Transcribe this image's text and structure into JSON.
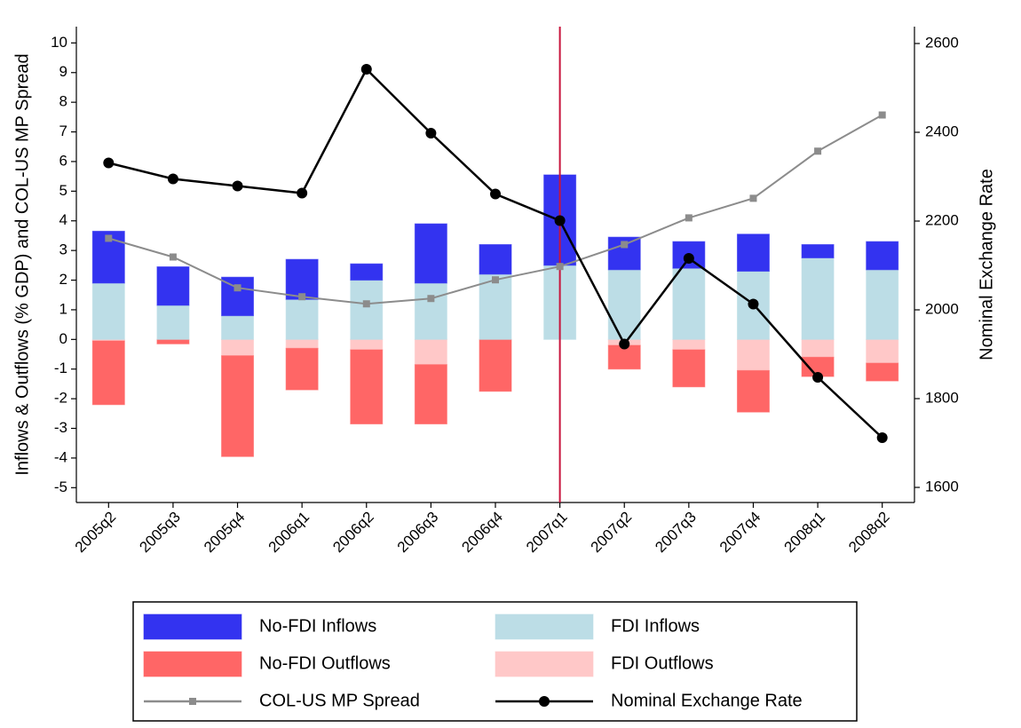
{
  "chart_data": {
    "type": "bar",
    "y_label": "Inflows & Outflows (% GDP) and COL-US MP Spread",
    "y2_label": "Nominal Exchange Rate",
    "categories": [
      "2005q2",
      "2005q3",
      "2005q4",
      "2006q1",
      "2006q2",
      "2006q3",
      "2006q4",
      "2007q1",
      "2007q2",
      "2007q3",
      "2007q4",
      "2008q1",
      "2008q2"
    ],
    "series": [
      {
        "name": "No-FDI Inflows",
        "type": "bar",
        "color": "#3333f0",
        "values": [
          1.75,
          1.3,
          1.3,
          1.35,
          0.55,
          2.0,
          1.0,
          3.05,
          1.1,
          0.9,
          1.25,
          0.45,
          0.95
        ]
      },
      {
        "name": "FDI Inflows",
        "type": "bar",
        "color": "#bcdde6",
        "values": [
          1.9,
          1.15,
          0.8,
          1.35,
          2.0,
          1.9,
          2.2,
          2.5,
          2.35,
          2.4,
          2.3,
          2.75,
          2.35
        ]
      },
      {
        "name": "No-FDI Outflows",
        "type": "bar",
        "color": "#ff6666",
        "values": [
          -2.15,
          -0.15,
          -3.4,
          -1.4,
          -2.5,
          -2.0,
          -1.75,
          0,
          -0.8,
          -1.25,
          -1.4,
          -0.65,
          -0.6
        ]
      },
      {
        "name": "FDI Outflows",
        "type": "bar",
        "color": "#ffc8c8",
        "values": [
          -0.05,
          0,
          -0.55,
          -0.3,
          -0.35,
          -0.85,
          0,
          0,
          -0.2,
          -0.35,
          -1.05,
          -0.6,
          -0.8
        ]
      },
      {
        "name": "COL-US MP Spread",
        "type": "line",
        "marker": "square",
        "color": "#8c8c8c",
        "values": [
          3.41,
          2.78,
          1.74,
          1.44,
          1.2,
          1.38,
          2.01,
          2.46,
          3.2,
          4.1,
          4.76,
          6.35,
          7.57
        ]
      },
      {
        "name": "Nominal Exchange Rate",
        "type": "line",
        "marker": "circle",
        "color": "#000000",
        "axis": "y2",
        "values": [
          2331,
          2295,
          2279,
          2263,
          2542,
          2398,
          2261,
          2201,
          1923,
          2116,
          2013,
          1848,
          1712
        ]
      }
    ],
    "vertical_line": {
      "category": "2007q1",
      "color": "#c8143c"
    },
    "ylim": [
      -5.5,
      10.55
    ],
    "yticks": [
      -5,
      -4,
      -3,
      -2,
      -1,
      0,
      1,
      2,
      3,
      4,
      5,
      6,
      7,
      8,
      9,
      10
    ],
    "y2lim": [
      1566,
      2638
    ],
    "y2ticks": [
      1600,
      1800,
      2000,
      2200,
      2400,
      2600
    ],
    "grid": false
  }
}
